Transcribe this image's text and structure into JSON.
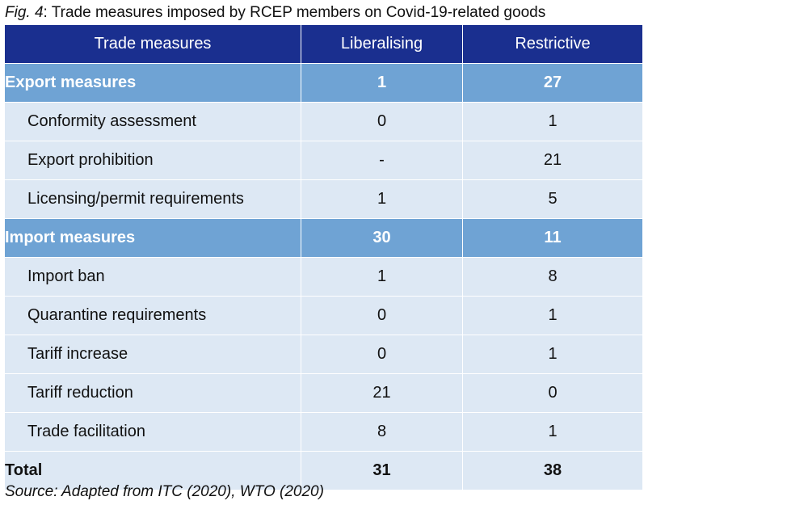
{
  "caption": {
    "fig_label": "Fig. 4",
    "text": ": Trade measures imposed by RCEP members on Covid-19-related goods"
  },
  "table": {
    "headers": [
      "Trade measures",
      "Liberalising",
      "Restrictive"
    ],
    "rows": [
      {
        "type": "section",
        "label": "Export measures",
        "liberalising": "1",
        "restrictive": "27"
      },
      {
        "type": "item",
        "label": "Conformity assessment",
        "liberalising": "0",
        "restrictive": "1"
      },
      {
        "type": "item",
        "label": "Export prohibition",
        "liberalising": "-",
        "restrictive": "21"
      },
      {
        "type": "item",
        "label": "Licensing/permit requirements",
        "liberalising": "1",
        "restrictive": "5"
      },
      {
        "type": "section",
        "label": "Import  measures",
        "liberalising": "30",
        "restrictive": "11"
      },
      {
        "type": "item",
        "label": "Import ban",
        "liberalising": "1",
        "restrictive": "8"
      },
      {
        "type": "item",
        "label": "Quarantine requirements",
        "liberalising": "0",
        "restrictive": "1"
      },
      {
        "type": "item",
        "label": "Tariff increase",
        "liberalising": "0",
        "restrictive": "1"
      },
      {
        "type": "item",
        "label": "Tariff reduction",
        "liberalising": "21",
        "restrictive": "0"
      },
      {
        "type": "item",
        "label": "Trade facilitation",
        "liberalising": "8",
        "restrictive": "1"
      },
      {
        "type": "total",
        "label": "Total",
        "liberalising": "31",
        "restrictive": "38"
      }
    ]
  },
  "source": "Source: Adapted from ITC (2020), WTO (2020)",
  "colors": {
    "header_bg": "#1a2f8f",
    "section_bg": "#6fa3d4",
    "row_bg": "#dde8f4"
  }
}
